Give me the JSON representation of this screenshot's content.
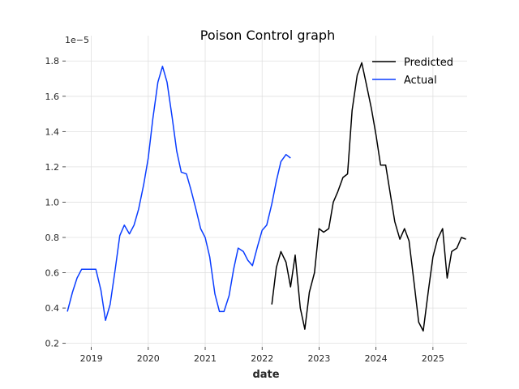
{
  "chart_data": {
    "type": "line",
    "title": "Poison Control graph",
    "xlabel": "date",
    "ylabel": "",
    "y_offset_label": "1e−5",
    "xlim": [
      2018.55,
      2025.6
    ],
    "ylim": [
      0.18,
      1.87
    ],
    "x_ticks": [
      2019,
      2020,
      2021,
      2022,
      2023,
      2024,
      2025
    ],
    "x_tick_labels": [
      "2019",
      "2020",
      "2021",
      "2022",
      "2023",
      "2024",
      "2025"
    ],
    "y_ticks": [
      0.2,
      0.4,
      0.6,
      0.8,
      1.0,
      1.2,
      1.4,
      1.6,
      1.8
    ],
    "y_tick_labels": [
      "0.2",
      "0.4",
      "0.6",
      "0.8",
      "1.0",
      "1.2",
      "1.4",
      "1.6",
      "1.8"
    ],
    "grid": true,
    "legend_position": "top-right",
    "series": [
      {
        "name": "Predicted",
        "color": "#000000",
        "x": [
          2022.17,
          2022.25,
          2022.33,
          2022.42,
          2022.5,
          2022.58,
          2022.67,
          2022.75,
          2022.83,
          2022.92,
          2023.0,
          2023.08,
          2023.17,
          2023.25,
          2023.33,
          2023.42,
          2023.5,
          2023.58,
          2023.67,
          2023.75,
          2023.83,
          2023.92,
          2024.0,
          2024.08,
          2024.17,
          2024.25,
          2024.33,
          2024.42,
          2024.5,
          2024.58,
          2024.67,
          2024.75,
          2024.83,
          2024.92,
          2025.0,
          2025.08,
          2025.17,
          2025.25,
          2025.33,
          2025.42,
          2025.5,
          2025.58
        ],
        "y": [
          0.42,
          0.63,
          0.72,
          0.66,
          0.52,
          0.7,
          0.4,
          0.28,
          0.49,
          0.6,
          0.85,
          0.83,
          0.85,
          1.0,
          1.06,
          1.14,
          1.16,
          1.52,
          1.72,
          1.79,
          1.67,
          1.53,
          1.38,
          1.21,
          1.21,
          1.05,
          0.89,
          0.79,
          0.85,
          0.78,
          0.54,
          0.32,
          0.27,
          0.5,
          0.69,
          0.79,
          0.85,
          0.57,
          0.72,
          0.74,
          0.8,
          0.79
        ]
      },
      {
        "name": "Actual",
        "color": "#0a3dff",
        "x": [
          2018.58,
          2018.67,
          2018.75,
          2018.83,
          2018.92,
          2019.0,
          2019.08,
          2019.17,
          2019.25,
          2019.33,
          2019.42,
          2019.5,
          2019.58,
          2019.67,
          2019.75,
          2019.83,
          2019.92,
          2020.0,
          2020.08,
          2020.17,
          2020.25,
          2020.33,
          2020.42,
          2020.5,
          2020.58,
          2020.67,
          2020.75,
          2020.83,
          2020.92,
          2021.0,
          2021.08,
          2021.17,
          2021.25,
          2021.33,
          2021.42,
          2021.5,
          2021.58,
          2021.67,
          2021.75,
          2021.83,
          2021.92,
          2022.0,
          2022.08,
          2022.17,
          2022.25,
          2022.33,
          2022.42,
          2022.5
        ],
        "y": [
          0.38,
          0.49,
          0.57,
          0.62,
          0.62,
          0.62,
          0.62,
          0.5,
          0.33,
          0.42,
          0.62,
          0.81,
          0.87,
          0.82,
          0.87,
          0.96,
          1.1,
          1.25,
          1.47,
          1.68,
          1.77,
          1.68,
          1.48,
          1.29,
          1.17,
          1.16,
          1.07,
          0.97,
          0.85,
          0.8,
          0.69,
          0.48,
          0.38,
          0.38,
          0.47,
          0.62,
          0.74,
          0.72,
          0.67,
          0.64,
          0.75,
          0.84,
          0.87,
          0.99,
          1.12,
          1.23,
          1.27,
          1.25
        ]
      }
    ]
  }
}
